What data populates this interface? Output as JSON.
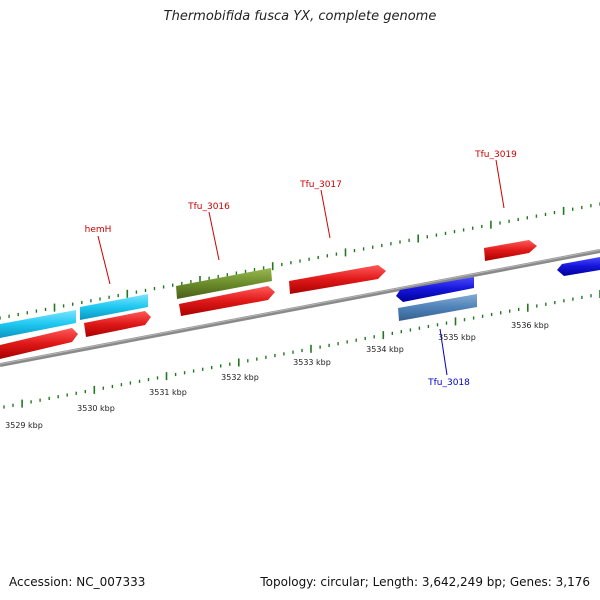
{
  "title": "Thermobifida fusca YX, complete genome",
  "footer": {
    "accession": "Accession: NC_007333",
    "stats": "Topology: circular; Length: 3,642,249 bp; Genes: 3,176"
  },
  "scale": {
    "unit": "kbp",
    "labels": [
      "3529 kbp",
      "3530 kbp",
      "3531 kbp",
      "3532 kbp",
      "3533 kbp",
      "3534 kbp",
      "3535 kbp",
      "3536 kbp"
    ]
  },
  "colors": {
    "backbone": "#808080",
    "tick": "#1f7a1f",
    "cds_forward": "#e21b1b",
    "cds_reverse": "#1a1ad8",
    "cyan_feature": "#1ec8f0",
    "olive_feature": "#6b8c2a",
    "steel_feature": "#4f82b8",
    "label_forward": "#cc0000",
    "label_reverse": "#0000cc"
  },
  "gene_labels": [
    {
      "name": "hemH",
      "strand": "forward"
    },
    {
      "name": "Tfu_3016",
      "strand": "forward"
    },
    {
      "name": "Tfu_3017",
      "strand": "forward"
    },
    {
      "name": "Tfu_3019",
      "strand": "forward"
    },
    {
      "name": "Tfu_3018",
      "strand": "reverse"
    }
  ]
}
